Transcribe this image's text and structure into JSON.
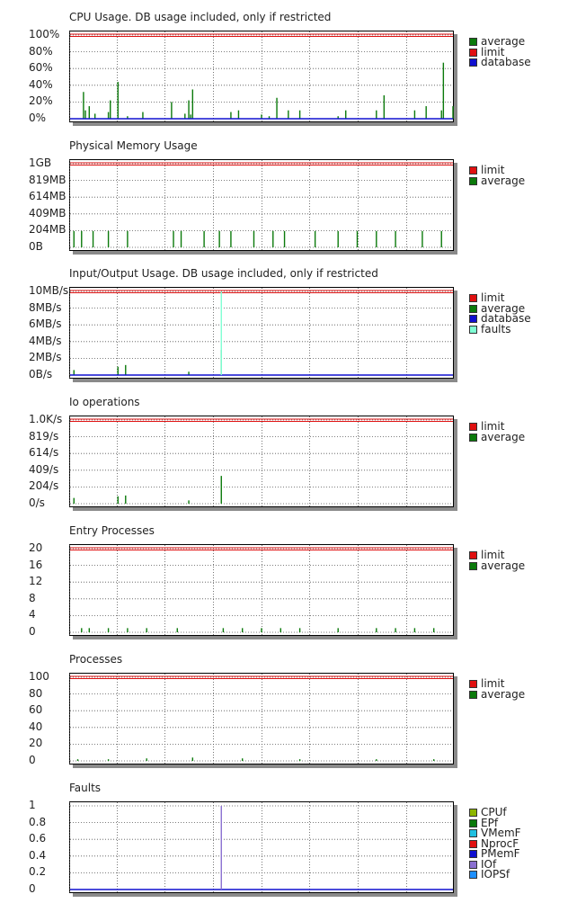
{
  "panels": [
    {
      "title": "CPU Usage. DB usage included, only if restricted",
      "y_ticks": [
        "100%",
        "80%",
        "60%",
        "40%",
        "20%",
        "0%"
      ],
      "legend": [
        {
          "label": "average",
          "color": "#0b7a0b"
        },
        {
          "label": "limit",
          "color": "#e01010"
        },
        {
          "label": "database",
          "color": "#1010d0"
        }
      ]
    },
    {
      "title": "Physical Memory Usage",
      "y_ticks": [
        "1GB",
        "819MB",
        "614MB",
        "409MB",
        "204MB",
        "0B"
      ],
      "legend": [
        {
          "label": "limit",
          "color": "#e01010"
        },
        {
          "label": "average",
          "color": "#0b7a0b"
        }
      ]
    },
    {
      "title": "Input/Output Usage. DB usage included, only if restricted",
      "y_ticks": [
        "10MB/s",
        "8MB/s",
        "6MB/s",
        "4MB/s",
        "2MB/s",
        "0B/s"
      ],
      "legend": [
        {
          "label": "limit",
          "color": "#e01010"
        },
        {
          "label": "average",
          "color": "#0b7a0b"
        },
        {
          "label": "database",
          "color": "#1010d0"
        },
        {
          "label": "faults",
          "color": "#7fffd4"
        }
      ]
    },
    {
      "title": "Io operations",
      "y_ticks": [
        "1.0K/s",
        "819/s",
        "614/s",
        "409/s",
        "204/s",
        "0/s"
      ],
      "legend": [
        {
          "label": "limit",
          "color": "#e01010"
        },
        {
          "label": "average",
          "color": "#0b7a0b"
        }
      ]
    },
    {
      "title": "Entry Processes",
      "y_ticks": [
        "20",
        "16",
        "12",
        "8",
        "4",
        "0"
      ],
      "legend": [
        {
          "label": "limit",
          "color": "#e01010"
        },
        {
          "label": "average",
          "color": "#0b7a0b"
        }
      ]
    },
    {
      "title": "Processes",
      "y_ticks": [
        "100",
        "80",
        "60",
        "40",
        "20",
        "0"
      ],
      "legend": [
        {
          "label": "limit",
          "color": "#e01010"
        },
        {
          "label": "average",
          "color": "#0b7a0b"
        }
      ]
    },
    {
      "title": "Faults",
      "y_ticks": [
        "1",
        "0.8",
        "0.6",
        "0.4",
        "0.2",
        "0"
      ],
      "legend": [
        {
          "label": "CPUf",
          "color": "#8db600"
        },
        {
          "label": "EPf",
          "color": "#0b7a0b"
        },
        {
          "label": "VMemF",
          "color": "#20c0e0"
        },
        {
          "label": "NprocF",
          "color": "#e01010"
        },
        {
          "label": "PMemF",
          "color": "#1010d0"
        },
        {
          "label": "IOf",
          "color": "#8a6fd0"
        },
        {
          "label": "IOPSf",
          "color": "#1e90ff"
        }
      ]
    }
  ],
  "chart_data": [
    {
      "type": "line",
      "title": "CPU Usage. DB usage included, only if restricted",
      "ylim": [
        0,
        100
      ],
      "series": [
        {
          "name": "limit",
          "values": [
            [
              0,
              100
            ],
            [
              1,
              100
            ]
          ]
        },
        {
          "name": "average",
          "values": [
            [
              0.035,
              32
            ],
            [
              0.04,
              10
            ],
            [
              0.05,
              15
            ],
            [
              0.065,
              6
            ],
            [
              0.1,
              8
            ],
            [
              0.105,
              22
            ],
            [
              0.125,
              44
            ],
            [
              0.15,
              3
            ],
            [
              0.19,
              8
            ],
            [
              0.265,
              20
            ],
            [
              0.3,
              6
            ],
            [
              0.31,
              22
            ],
            [
              0.315,
              5
            ],
            [
              0.32,
              35
            ],
            [
              0.42,
              8
            ],
            [
              0.44,
              10
            ],
            [
              0.5,
              5
            ],
            [
              0.52,
              3
            ],
            [
              0.54,
              25
            ],
            [
              0.57,
              10
            ],
            [
              0.6,
              10
            ],
            [
              0.7,
              3
            ],
            [
              0.72,
              10
            ],
            [
              0.8,
              10
            ],
            [
              0.82,
              28
            ],
            [
              0.9,
              10
            ],
            [
              0.93,
              15
            ],
            [
              0.97,
              10
            ],
            [
              0.975,
              67
            ],
            [
              1.0,
              15
            ]
          ]
        },
        {
          "name": "database",
          "values": [
            [
              0,
              0
            ],
            [
              1,
              0
            ]
          ]
        }
      ]
    },
    {
      "type": "line",
      "title": "Physical Memory Usage",
      "ylim": [
        0,
        1024
      ],
      "series": [
        {
          "name": "limit",
          "values": [
            [
              0,
              1024
            ],
            [
              1,
              1024
            ]
          ]
        },
        {
          "name": "average",
          "values": [
            [
              0.01,
              200
            ],
            [
              0.03,
              200
            ],
            [
              0.06,
              200
            ],
            [
              0.1,
              200
            ],
            [
              0.15,
              200
            ],
            [
              0.27,
              200
            ],
            [
              0.29,
              200
            ],
            [
              0.35,
              200
            ],
            [
              0.39,
              200
            ],
            [
              0.42,
              200
            ],
            [
              0.48,
              200
            ],
            [
              0.53,
              200
            ],
            [
              0.56,
              200
            ],
            [
              0.64,
              200
            ],
            [
              0.7,
              200
            ],
            [
              0.75,
              200
            ],
            [
              0.8,
              200
            ],
            [
              0.85,
              200
            ],
            [
              0.92,
              200
            ],
            [
              0.97,
              200
            ]
          ]
        }
      ]
    },
    {
      "type": "line",
      "title": "Input/Output Usage. DB usage included, only if restricted",
      "ylim": [
        0,
        10
      ],
      "series": [
        {
          "name": "limit",
          "values": [
            [
              0,
              10
            ],
            [
              1,
              10
            ]
          ]
        },
        {
          "name": "average",
          "values": [
            [
              0.01,
              0.6
            ],
            [
              0.125,
              1
            ],
            [
              0.145,
              1.2
            ],
            [
              0.31,
              0.4
            ],
            [
              0.395,
              3
            ]
          ]
        },
        {
          "name": "database",
          "values": [
            [
              0,
              0
            ],
            [
              1,
              0
            ]
          ]
        },
        {
          "name": "faults",
          "values": [
            [
              0.395,
              10
            ]
          ]
        }
      ]
    },
    {
      "type": "line",
      "title": "Io operations",
      "ylim": [
        0,
        1024
      ],
      "series": [
        {
          "name": "limit",
          "values": [
            [
              0,
              1024
            ],
            [
              1,
              1024
            ]
          ]
        },
        {
          "name": "average",
          "values": [
            [
              0.01,
              70
            ],
            [
              0.125,
              90
            ],
            [
              0.145,
              100
            ],
            [
              0.31,
              40
            ],
            [
              0.395,
              340
            ]
          ]
        }
      ]
    },
    {
      "type": "line",
      "title": "Entry Processes",
      "ylim": [
        0,
        20
      ],
      "series": [
        {
          "name": "limit",
          "values": [
            [
              0,
              20
            ],
            [
              1,
              20
            ]
          ]
        },
        {
          "name": "average",
          "values": [
            [
              0.03,
              1
            ],
            [
              0.05,
              1
            ],
            [
              0.1,
              1
            ],
            [
              0.15,
              1
            ],
            [
              0.2,
              1
            ],
            [
              0.28,
              1
            ],
            [
              0.4,
              1
            ],
            [
              0.45,
              1
            ],
            [
              0.5,
              1
            ],
            [
              0.55,
              1
            ],
            [
              0.6,
              1
            ],
            [
              0.7,
              1
            ],
            [
              0.8,
              1
            ],
            [
              0.85,
              1
            ],
            [
              0.9,
              1
            ],
            [
              0.95,
              1
            ]
          ]
        }
      ]
    },
    {
      "type": "line",
      "title": "Processes",
      "ylim": [
        0,
        100
      ],
      "series": [
        {
          "name": "limit",
          "values": [
            [
              0,
              100
            ],
            [
              1,
              100
            ]
          ]
        },
        {
          "name": "average",
          "values": [
            [
              0.02,
              2
            ],
            [
              0.1,
              2
            ],
            [
              0.2,
              3
            ],
            [
              0.32,
              4
            ],
            [
              0.45,
              3
            ],
            [
              0.6,
              2
            ],
            [
              0.8,
              2
            ],
            [
              0.95,
              2
            ]
          ]
        }
      ]
    },
    {
      "type": "line",
      "title": "Faults",
      "ylim": [
        0,
        1
      ],
      "series": [
        {
          "name": "PMemF",
          "values": [
            [
              0,
              0
            ],
            [
              1,
              0
            ]
          ]
        },
        {
          "name": "IOf",
          "values": [
            [
              0.395,
              1
            ]
          ]
        }
      ]
    }
  ]
}
